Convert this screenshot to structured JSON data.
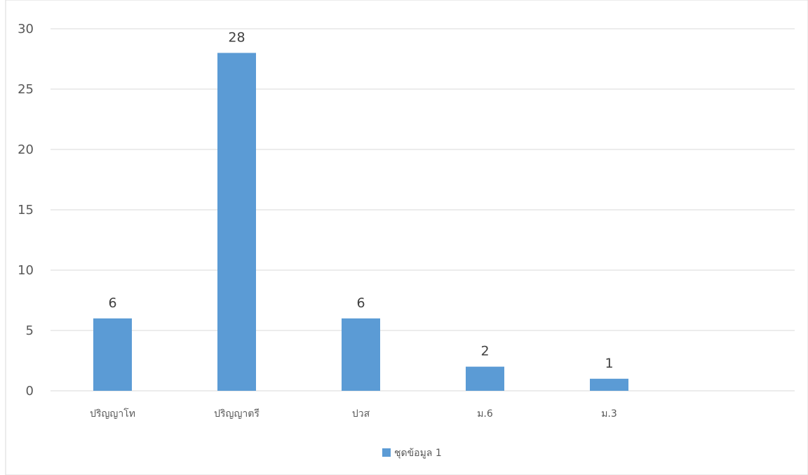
{
  "chart_data": {
    "type": "bar",
    "title": "",
    "categories": [
      "ปริญญาโท",
      "ปริญญาตรี",
      "ปวส",
      "ม.6",
      "ม.3"
    ],
    "series": [
      {
        "name": "ชุดข้อมูล 1",
        "values": [
          6,
          28,
          6,
          2,
          1
        ],
        "color": "#5b9bd5"
      }
    ],
    "ylim": [
      0,
      30
    ],
    "yticks": [
      0,
      5,
      10,
      15,
      20,
      25,
      30
    ],
    "grid": true,
    "legend": "bottom",
    "data_labels": true
  }
}
